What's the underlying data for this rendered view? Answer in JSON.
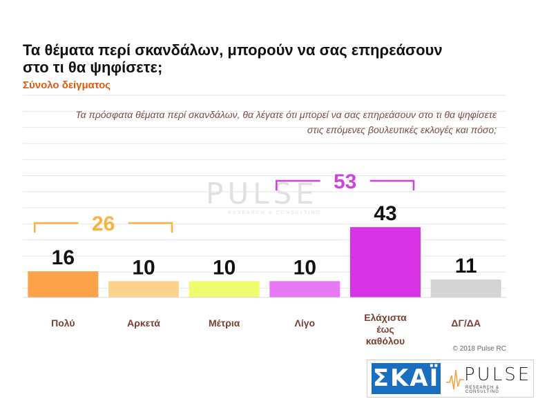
{
  "header": {
    "title": "Τα θέματα περί σκανδάλων, μπορούν να σας επηρεάσουν στο τι θα ψηφίσετε;",
    "subtitle": "Σύνολο δείγματος",
    "question": "Τα πρόσφατα θέματα περί σκανδάλων, θα λέγατε ότι μπορεί να σας επηρεάσουν στο τι θα ψηφίσετε στις επόμενες βουλευτικές εκλογές και πόσο;"
  },
  "chart_data": {
    "type": "bar",
    "categories": [
      "Πολύ",
      "Αρκετά",
      "Μέτρια",
      "Λίγο",
      "Ελάχιστα\nέως\nκαθόλου",
      "ΔΓ/ΔΑ"
    ],
    "values": [
      16,
      10,
      10,
      10,
      43,
      11
    ],
    "colors": [
      "#fca34a",
      "#fdd28c",
      "#eefc6e",
      "#e77af2",
      "#d732e6",
      "#d4d4d4"
    ],
    "ylim": [
      0,
      60
    ],
    "grid": true,
    "groups": [
      {
        "label": "26",
        "from": 0,
        "to": 1,
        "color": "#fbb040"
      },
      {
        "label": "53",
        "from": 3,
        "to": 4,
        "color": "#d13fe0"
      }
    ]
  },
  "watermark": {
    "word": "PULSE",
    "sub": "RESEARCH & CONSULTING"
  },
  "footer": {
    "copyright": "© 2018 Pulse RC",
    "skai": "ΣΚΑΪ",
    "pulse": "PULSE",
    "pulse_sub": "RESEARCH & CONSULTING"
  }
}
